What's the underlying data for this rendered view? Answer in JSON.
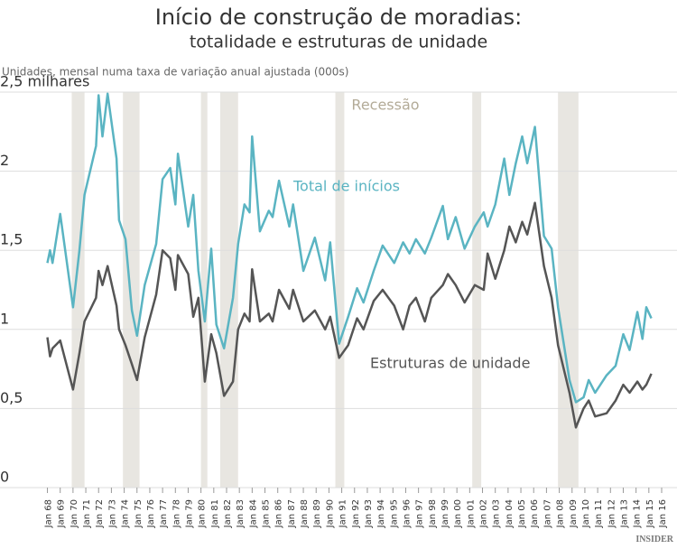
{
  "chart_data": {
    "type": "line",
    "title": "Início de construção de moradias:",
    "subtitle": "totalidade e estruturas de unidade",
    "y_axis_label": "Unidades, mensal numa taxa de variação anual ajustada (000s)",
    "recession_label": "Recessão",
    "source": "INSIDER",
    "recessions": [
      [
        1969.9,
        1970.9
      ],
      [
        1973.9,
        1975.2
      ],
      [
        1980.0,
        1980.5
      ],
      [
        1981.5,
        1982.9
      ],
      [
        1990.5,
        1991.2
      ],
      [
        2001.2,
        2001.9
      ],
      [
        2007.9,
        2009.5
      ]
    ],
    "x": [
      1968.0,
      1968.2,
      1968.4,
      1969.0,
      1970.0,
      1970.5,
      1970.9,
      1971.8,
      1972.0,
      1972.3,
      1972.7,
      1973.4,
      1973.6,
      1974.1,
      1974.6,
      1975.0,
      1975.6,
      1976.5,
      1977.0,
      1977.6,
      1978.0,
      1978.2,
      1979.0,
      1979.4,
      1979.8,
      1980.3,
      1980.8,
      1981.2,
      1981.8,
      1982.5,
      1982.9,
      1983.4,
      1983.8,
      1984.0,
      1984.6,
      1985.3,
      1985.6,
      1986.1,
      1986.9,
      1987.2,
      1988.0,
      1988.9,
      1989.7,
      1990.1,
      1990.8,
      1991.5,
      1992.2,
      1992.7,
      1993.5,
      1994.2,
      1995.1,
      1995.8,
      1996.3,
      1996.8,
      1997.5,
      1998.0,
      1998.9,
      1999.3,
      1999.9,
      2000.6,
      2001.4,
      2002.1,
      2002.4,
      2003.0,
      2003.7,
      2004.1,
      2004.6,
      2005.1,
      2005.5,
      2006.1,
      2006.8,
      2007.4,
      2007.9,
      2008.8,
      2009.3,
      2009.9,
      2010.3,
      2010.8,
      2011.7,
      2012.4,
      2013.0,
      2013.5,
      2014.1,
      2014.5,
      2014.8,
      2015.2
    ],
    "series": [
      {
        "name": "Total de inícios",
        "color": "#5ab4c2",
        "values": [
          1.42,
          1.5,
          1.42,
          1.73,
          1.14,
          1.5,
          1.85,
          2.16,
          2.48,
          2.22,
          2.49,
          2.08,
          1.69,
          1.57,
          1.12,
          0.96,
          1.28,
          1.54,
          1.95,
          2.02,
          1.79,
          2.11,
          1.65,
          1.85,
          1.37,
          1.05,
          1.51,
          1.03,
          0.88,
          1.2,
          1.54,
          1.79,
          1.74,
          2.22,
          1.62,
          1.75,
          1.71,
          1.94,
          1.65,
          1.79,
          1.37,
          1.58,
          1.31,
          1.55,
          0.91,
          1.08,
          1.26,
          1.17,
          1.37,
          1.53,
          1.42,
          1.55,
          1.48,
          1.57,
          1.48,
          1.58,
          1.78,
          1.57,
          1.71,
          1.51,
          1.65,
          1.74,
          1.65,
          1.79,
          2.08,
          1.85,
          2.05,
          2.22,
          2.05,
          2.28,
          1.59,
          1.51,
          1.14,
          0.68,
          0.54,
          0.57,
          0.68,
          0.6,
          0.71,
          0.77,
          0.97,
          0.87,
          1.11,
          0.94,
          1.14,
          1.07
        ]
      },
      {
        "name": "Estruturas de unidade",
        "color": "#555555",
        "values": [
          0.95,
          0.83,
          0.88,
          0.93,
          0.62,
          0.85,
          1.05,
          1.2,
          1.37,
          1.28,
          1.4,
          1.15,
          1.0,
          0.9,
          0.78,
          0.68,
          0.95,
          1.22,
          1.5,
          1.45,
          1.25,
          1.47,
          1.35,
          1.08,
          1.2,
          0.67,
          0.97,
          0.85,
          0.58,
          0.67,
          1.0,
          1.1,
          1.05,
          1.38,
          1.05,
          1.1,
          1.05,
          1.25,
          1.13,
          1.25,
          1.05,
          1.12,
          1.0,
          1.08,
          0.82,
          0.9,
          1.07,
          1.0,
          1.18,
          1.25,
          1.15,
          1.0,
          1.15,
          1.2,
          1.05,
          1.2,
          1.28,
          1.35,
          1.28,
          1.17,
          1.28,
          1.25,
          1.48,
          1.32,
          1.5,
          1.65,
          1.55,
          1.68,
          1.6,
          1.8,
          1.4,
          1.2,
          0.9,
          0.6,
          0.38,
          0.5,
          0.55,
          0.45,
          0.47,
          0.55,
          0.65,
          0.6,
          0.67,
          0.62,
          0.65,
          0.72
        ]
      }
    ],
    "xlim": [
      1965,
      2017.2
    ],
    "xticks": [
      {
        "value": 1968,
        "label": "Jan 68"
      },
      {
        "value": 1969,
        "label": "Jan 69"
      },
      {
        "value": 1970,
        "label": "Jan 70"
      },
      {
        "value": 1971,
        "label": "Jan 71"
      },
      {
        "value": 1972,
        "label": "Jan 72"
      },
      {
        "value": 1973,
        "label": "Jan 73"
      },
      {
        "value": 1974,
        "label": "Jan 74"
      },
      {
        "value": 1975,
        "label": "Jan 75"
      },
      {
        "value": 1976,
        "label": "Jan 76"
      },
      {
        "value": 1977,
        "label": "Jan 77"
      },
      {
        "value": 1978,
        "label": "Jan 78"
      },
      {
        "value": 1979,
        "label": "Jan 79"
      },
      {
        "value": 1980,
        "label": "Jan 80"
      },
      {
        "value": 1981,
        "label": "Jan 81"
      },
      {
        "value": 1982,
        "label": "Jan 82"
      },
      {
        "value": 1983,
        "label": "Jan 83"
      },
      {
        "value": 1984,
        "label": "Jan 84"
      },
      {
        "value": 1985,
        "label": "Jan 85"
      },
      {
        "value": 1986,
        "label": "Jan 86"
      },
      {
        "value": 1987,
        "label": "Jan 87"
      },
      {
        "value": 1988,
        "label": "Jan 88"
      },
      {
        "value": 1989,
        "label": "Jan 89"
      },
      {
        "value": 1990,
        "label": "Jan 90"
      },
      {
        "value": 1991,
        "label": "Jan 91"
      },
      {
        "value": 1992,
        "label": "Jan 92"
      },
      {
        "value": 1993,
        "label": "Jan 93"
      },
      {
        "value": 1994,
        "label": "Jan 94"
      },
      {
        "value": 1995,
        "label": "Jan 95"
      },
      {
        "value": 1996,
        "label": "Jan 96"
      },
      {
        "value": 1997,
        "label": "Jan 97"
      },
      {
        "value": 1998,
        "label": "Jan 98"
      },
      {
        "value": 1999,
        "label": "Jan 99"
      },
      {
        "value": 2000,
        "label": "Jan 00"
      },
      {
        "value": 2001,
        "label": "Jan 01"
      },
      {
        "value": 2002,
        "label": "Jan 02"
      },
      {
        "value": 2003,
        "label": "Jan 03"
      },
      {
        "value": 2004,
        "label": "Jan 04"
      },
      {
        "value": 2005,
        "label": "Jan 05"
      },
      {
        "value": 2006,
        "label": "Jan 06"
      },
      {
        "value": 2007,
        "label": "Jan 07"
      },
      {
        "value": 2008,
        "label": "Jan 08"
      },
      {
        "value": 2009,
        "label": "Jan 09"
      },
      {
        "value": 2010,
        "label": "Jan 10"
      },
      {
        "value": 2011,
        "label": "Jan 11"
      },
      {
        "value": 2012,
        "label": "Jan 12"
      },
      {
        "value": 2013,
        "label": "Jan 13"
      },
      {
        "value": 2014,
        "label": "Jan 14"
      },
      {
        "value": 2015,
        "label": "Jan 15"
      },
      {
        "value": 2016,
        "label": "Jan 16"
      }
    ],
    "ylim": [
      0,
      2.5
    ],
    "yticks": [
      0,
      {
        "value": 0.5,
        "label": "0,5"
      },
      1,
      {
        "value": 1.5,
        "label": "1,5"
      },
      2,
      {
        "value": 2.5,
        "label": "2,5 milhares"
      }
    ],
    "grid": true
  }
}
